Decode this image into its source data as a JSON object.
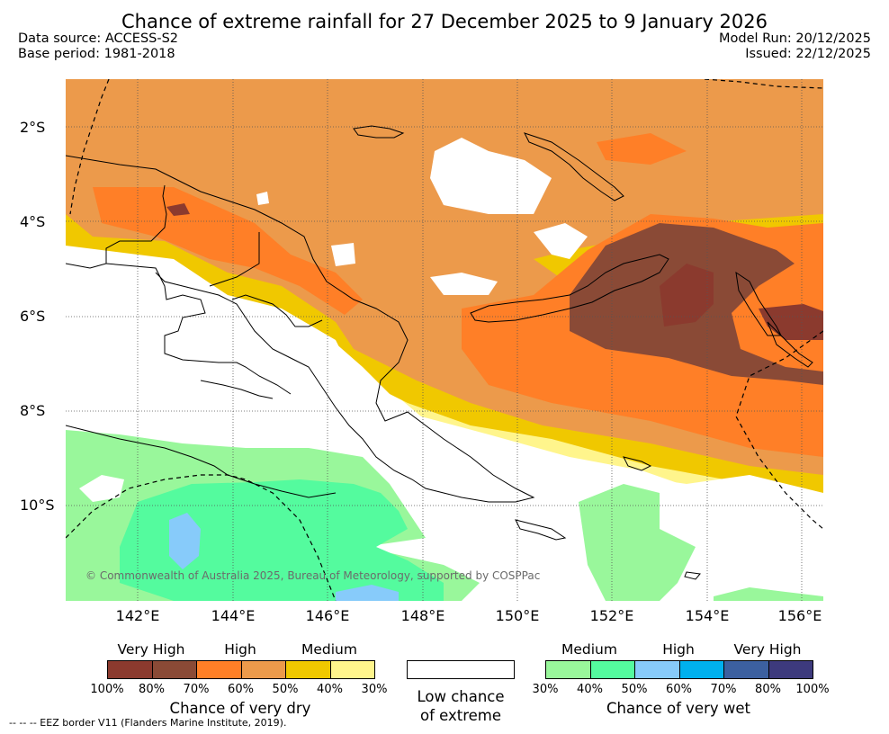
{
  "header": {
    "title": "Chance of extreme rainfall for 27 December 2025 to 9 January 2026",
    "data_source": "Data source: ACCESS-S2",
    "base_period": "Base period: 1981-2018",
    "model_run": "Model Run: 20/12/2025",
    "issued": "Issued: 22/12/2025"
  },
  "map": {
    "lat_labels": [
      "2°S",
      "4°S",
      "6°S",
      "8°S",
      "10°S"
    ],
    "lon_labels": [
      "142°E",
      "144°E",
      "146°E",
      "148°E",
      "150°E",
      "152°E",
      "154°E",
      "156°E"
    ],
    "copyright": "© Commonwealth of Australia 2025, Bureau of Meteorology, supported by COSPPac"
  },
  "legend": {
    "dry": {
      "levels": [
        "Very High",
        "High",
        "Medium"
      ],
      "colors": [
        "#8b3a2e",
        "#8a4a36",
        "#ff7f27",
        "#ec9a4b",
        "#f0c800",
        "#fff58c"
      ],
      "ticks": [
        "100%",
        "80%",
        "70%",
        "60%",
        "50%",
        "40%",
        "30%"
      ],
      "caption": "Chance of very dry"
    },
    "low": {
      "caption_line1": "Low chance",
      "caption_line2": "of extreme"
    },
    "wet": {
      "levels": [
        "Medium",
        "High",
        "Very High"
      ],
      "colors": [
        "#99f79b",
        "#54fb9e",
        "#87cbfa",
        "#00b0ee",
        "#3c60a0",
        "#3d3a7d"
      ],
      "ticks": [
        "30%",
        "40%",
        "50%",
        "60%",
        "70%",
        "80%",
        "100%"
      ],
      "caption": "Chance of very wet"
    },
    "eez_note": "--  --  -- EEZ border V11 (Flanders Marine Institute, 2019)."
  }
}
